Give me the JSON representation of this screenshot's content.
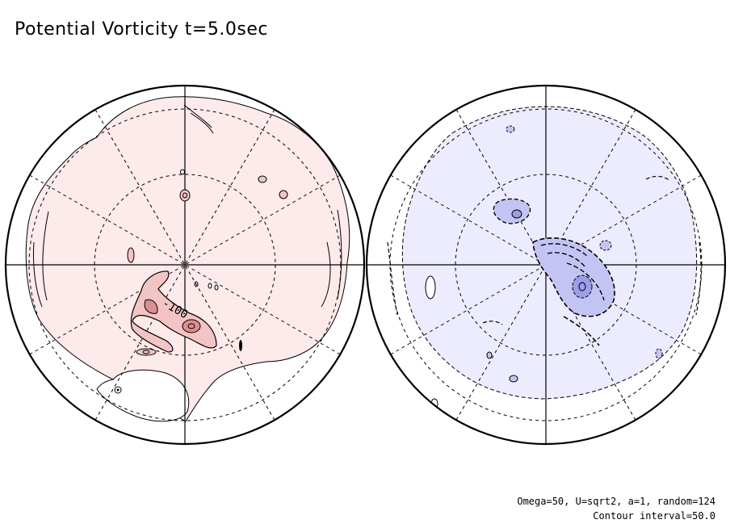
{
  "title": "Potential Vorticity t=5.0sec",
  "contour_label": "-100",
  "params_text": "Omega=50, U=sqrt2, a=1, random=124",
  "contour_interval_text": "Contour interval=50.0",
  "colors": {
    "left_fill": "#fdeaea",
    "left_core": "#f3c4c4",
    "left_core_deep": "#dd8f8f",
    "right_fill": "#ececfe",
    "right_core": "#c4c4f4",
    "right_core_deep": "#9d9dea",
    "line": "#000000"
  }
}
